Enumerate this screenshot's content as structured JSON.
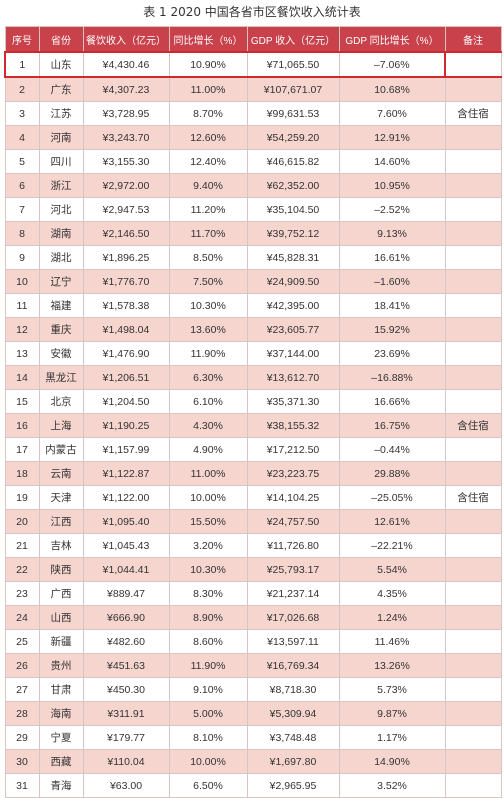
{
  "caption": "表 1 2020 中国各省市区餐饮收入统计表",
  "headers": [
    "序号",
    "省份",
    "餐饮收入（亿元）",
    "同比增长（%）",
    "GDP 收入（亿元）",
    "GDP 同比增长（%）",
    "备注"
  ],
  "rows": [
    {
      "no": "1",
      "province": "山东",
      "revenue": "¥4,430.46",
      "growth": "10.90%",
      "gdp": "¥71,065.50",
      "gdp_growth": "–7.06%",
      "note": ""
    },
    {
      "no": "2",
      "province": "广东",
      "revenue": "¥4,307.23",
      "growth": "11.00%",
      "gdp": "¥107,671.07",
      "gdp_growth": "10.68%",
      "note": ""
    },
    {
      "no": "3",
      "province": "江苏",
      "revenue": "¥3,728.95",
      "growth": "8.70%",
      "gdp": "¥99,631.53",
      "gdp_growth": "7.60%",
      "note": "含住宿"
    },
    {
      "no": "4",
      "province": "河南",
      "revenue": "¥3,243.70",
      "growth": "12.60%",
      "gdp": "¥54,259.20",
      "gdp_growth": "12.91%",
      "note": ""
    },
    {
      "no": "5",
      "province": "四川",
      "revenue": "¥3,155.30",
      "growth": "12.40%",
      "gdp": "¥46,615.82",
      "gdp_growth": "14.60%",
      "note": ""
    },
    {
      "no": "6",
      "province": "浙江",
      "revenue": "¥2,972.00",
      "growth": "9.40%",
      "gdp": "¥62,352.00",
      "gdp_growth": "10.95%",
      "note": ""
    },
    {
      "no": "7",
      "province": "河北",
      "revenue": "¥2,947.53",
      "growth": "11.20%",
      "gdp": "¥35,104.50",
      "gdp_growth": "–2.52%",
      "note": ""
    },
    {
      "no": "8",
      "province": "湖南",
      "revenue": "¥2,146.50",
      "growth": "11.70%",
      "gdp": "¥39,752.12",
      "gdp_growth": "9.13%",
      "note": ""
    },
    {
      "no": "9",
      "province": "湖北",
      "revenue": "¥1,896.25",
      "growth": "8.50%",
      "gdp": "¥45,828.31",
      "gdp_growth": "16.61%",
      "note": ""
    },
    {
      "no": "10",
      "province": "辽宁",
      "revenue": "¥1,776.70",
      "growth": "7.50%",
      "gdp": "¥24,909.50",
      "gdp_growth": "–1.60%",
      "note": ""
    },
    {
      "no": "11",
      "province": "福建",
      "revenue": "¥1,578.38",
      "growth": "10.30%",
      "gdp": "¥42,395.00",
      "gdp_growth": "18.41%",
      "note": ""
    },
    {
      "no": "12",
      "province": "重庆",
      "revenue": "¥1,498.04",
      "growth": "13.60%",
      "gdp": "¥23,605.77",
      "gdp_growth": "15.92%",
      "note": ""
    },
    {
      "no": "13",
      "province": "安徽",
      "revenue": "¥1,476.90",
      "growth": "11.90%",
      "gdp": "¥37,144.00",
      "gdp_growth": "23.69%",
      "note": ""
    },
    {
      "no": "14",
      "province": "黑龙江",
      "revenue": "¥1,206.51",
      "growth": "6.30%",
      "gdp": "¥13,612.70",
      "gdp_growth": "–16.88%",
      "note": ""
    },
    {
      "no": "15",
      "province": "北京",
      "revenue": "¥1,204.50",
      "growth": "6.10%",
      "gdp": "¥35,371.30",
      "gdp_growth": "16.66%",
      "note": ""
    },
    {
      "no": "16",
      "province": "上海",
      "revenue": "¥1,190.25",
      "growth": "4.30%",
      "gdp": "¥38,155.32",
      "gdp_growth": "16.75%",
      "note": "含住宿"
    },
    {
      "no": "17",
      "province": "内蒙古",
      "revenue": "¥1,157.99",
      "growth": "4.90%",
      "gdp": "¥17,212.50",
      "gdp_growth": "–0.44%",
      "note": ""
    },
    {
      "no": "18",
      "province": "云南",
      "revenue": "¥1,122.87",
      "growth": "11.00%",
      "gdp": "¥23,223.75",
      "gdp_growth": "29.88%",
      "note": ""
    },
    {
      "no": "19",
      "province": "天津",
      "revenue": "¥1,122.00",
      "growth": "10.00%",
      "gdp": "¥14,104.25",
      "gdp_growth": "–25.05%",
      "note": "含住宿"
    },
    {
      "no": "20",
      "province": "江西",
      "revenue": "¥1,095.40",
      "growth": "15.50%",
      "gdp": "¥24,757.50",
      "gdp_growth": "12.61%",
      "note": ""
    },
    {
      "no": "21",
      "province": "吉林",
      "revenue": "¥1,045.43",
      "growth": "3.20%",
      "gdp": "¥11,726.80",
      "gdp_growth": "–22.21%",
      "note": ""
    },
    {
      "no": "22",
      "province": "陕西",
      "revenue": "¥1,044.41",
      "growth": "10.30%",
      "gdp": "¥25,793.17",
      "gdp_growth": "5.54%",
      "note": ""
    },
    {
      "no": "23",
      "province": "广西",
      "revenue": "¥889.47",
      "growth": "8.30%",
      "gdp": "¥21,237.14",
      "gdp_growth": "4.35%",
      "note": ""
    },
    {
      "no": "24",
      "province": "山西",
      "revenue": "¥666.90",
      "growth": "8.90%",
      "gdp": "¥17,026.68",
      "gdp_growth": "1.24%",
      "note": ""
    },
    {
      "no": "25",
      "province": "新疆",
      "revenue": "¥482.60",
      "growth": "8.60%",
      "gdp": "¥13,597.11",
      "gdp_growth": "11.46%",
      "note": ""
    },
    {
      "no": "26",
      "province": "贵州",
      "revenue": "¥451.63",
      "growth": "11.90%",
      "gdp": "¥16,769.34",
      "gdp_growth": "13.26%",
      "note": ""
    },
    {
      "no": "27",
      "province": "甘肃",
      "revenue": "¥450.30",
      "growth": "9.10%",
      "gdp": "¥8,718.30",
      "gdp_growth": "5.73%",
      "note": ""
    },
    {
      "no": "28",
      "province": "海南",
      "revenue": "¥311.91",
      "growth": "5.00%",
      "gdp": "¥5,309.94",
      "gdp_growth": "9.87%",
      "note": ""
    },
    {
      "no": "29",
      "province": "宁夏",
      "revenue": "¥179.77",
      "growth": "8.10%",
      "gdp": "¥3,748.48",
      "gdp_growth": "1.17%",
      "note": ""
    },
    {
      "no": "30",
      "province": "西藏",
      "revenue": "¥110.04",
      "growth": "10.00%",
      "gdp": "¥1,697.80",
      "gdp_growth": "14.90%",
      "note": ""
    },
    {
      "no": "31",
      "province": "青海",
      "revenue": "¥63.00",
      "growth": "6.50%",
      "gdp": "¥2,965.95",
      "gdp_growth": "3.52%",
      "note": ""
    }
  ],
  "colors": {
    "header_bg": "#c9414a",
    "stripe_bg": "#f6d5cf",
    "highlight_border": "#d0282e"
  }
}
